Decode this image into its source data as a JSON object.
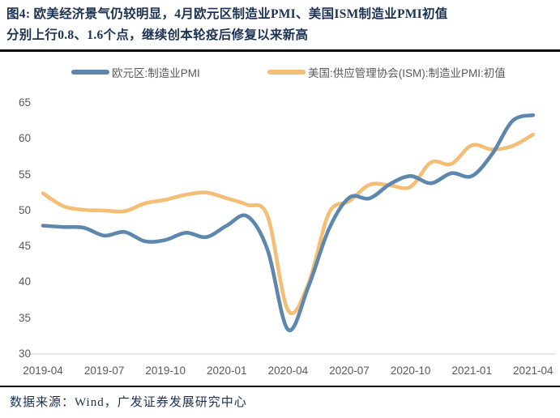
{
  "figure": {
    "title_line1": "图4: 欧美经济景气仍较明显，4月欧元区制造业PMI、美国ISM制造业PMI初值",
    "title_line2": "分别上行0.8、1.6个点，继续创本轮疫后修复以来新高",
    "source": "数据来源：Wind，广发证券发展研究中心"
  },
  "colors": {
    "title_text": "#1c3151",
    "rule": "#0a0a0a",
    "axis_text": "#595959",
    "axis_line": "#d9d9d9",
    "eurozone_line": "#5e87ae",
    "us_line": "#f4be76"
  },
  "chart_data": {
    "type": "line",
    "x": [
      "2019-04",
      "2019-05",
      "2019-06",
      "2019-07",
      "2019-08",
      "2019-09",
      "2019-10",
      "2019-11",
      "2019-12",
      "2020-01",
      "2020-02",
      "2020-03",
      "2020-04",
      "2020-05",
      "2020-06",
      "2020-07",
      "2020-08",
      "2020-09",
      "2020-10",
      "2020-11",
      "2020-12",
      "2021-01",
      "2021-02",
      "2021-03",
      "2021-04"
    ],
    "series": [
      {
        "name": "欧元区:制造业PMI",
        "color": "#5e87ae",
        "values": [
          47.9,
          47.7,
          47.6,
          46.5,
          47.0,
          45.7,
          45.9,
          46.9,
          46.3,
          47.9,
          49.2,
          44.5,
          33.4,
          39.4,
          47.4,
          51.8,
          51.7,
          53.7,
          54.8,
          53.8,
          55.2,
          54.8,
          57.9,
          62.5,
          63.3
        ]
      },
      {
        "name": "美国:供应管理协会(ISM):制造业PMI:初值",
        "color": "#f4be76",
        "values": [
          52.4,
          50.6,
          50.1,
          50.0,
          49.9,
          51.0,
          51.5,
          52.2,
          52.5,
          51.7,
          50.8,
          49.2,
          36.1,
          39.8,
          49.6,
          51.3,
          53.6,
          53.5,
          53.3,
          56.7,
          56.5,
          59.1,
          58.5,
          59.0,
          60.6
        ]
      }
    ],
    "ylim": [
      30,
      65
    ],
    "yticks": [
      65,
      60,
      55,
      50,
      45,
      40,
      35,
      30
    ],
    "xticks": [
      "2019-04",
      "2019-07",
      "2019-10",
      "2020-01",
      "2020-04",
      "2020-07",
      "2020-10",
      "2021-01",
      "2021-04"
    ],
    "legend_position": "top",
    "grid": false,
    "smoothed": true
  }
}
